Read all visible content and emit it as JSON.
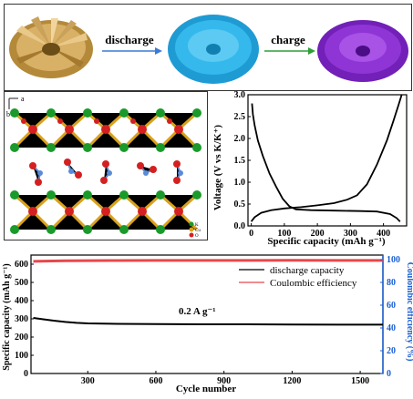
{
  "panel_a": {
    "discharge_label": "discharge",
    "charge_label": "charge",
    "colors": {
      "gold": "#c9a24e",
      "cyan": "#2fb6e6",
      "purple": "#8a2bd4"
    }
  },
  "panel_b": {
    "axis_a": "a",
    "axis_b": "b",
    "legend": [
      "K",
      "Cu",
      "O",
      "C"
    ],
    "colors": {
      "green": "#1a9a2a",
      "red": "#d42020",
      "gold": "#d9a21e",
      "blue": "#5b8bd6"
    }
  },
  "chart_data": [
    {
      "type": "line",
      "xlabel": "Specific capacity (mAh g⁻¹)",
      "ylabel": "Voltage (V vs K/K⁺)",
      "xlim": [
        -10,
        470
      ],
      "ylim": [
        0,
        3.0
      ],
      "x_ticks": [
        0,
        100,
        200,
        300,
        400
      ],
      "y_ticks": [
        0.0,
        0.5,
        1.0,
        1.5,
        2.0,
        2.5,
        3.0
      ],
      "series": [
        {
          "values": [
            [
              2,
              2.8
            ],
            [
              5,
              2.55
            ],
            [
              10,
              2.3
            ],
            [
              20,
              1.95
            ],
            [
              35,
              1.6
            ],
            [
              55,
              1.2
            ],
            [
              75,
              0.9
            ],
            [
              95,
              0.62
            ],
            [
              115,
              0.45
            ],
            [
              135,
              0.38
            ],
            [
              180,
              0.36
            ],
            [
              250,
              0.35
            ],
            [
              330,
              0.34
            ],
            [
              380,
              0.33
            ],
            [
              420,
              0.27
            ],
            [
              440,
              0.18
            ],
            [
              450,
              0.1
            ]
          ]
        },
        {
          "values": [
            [
              0,
              0.1
            ],
            [
              10,
              0.2
            ],
            [
              30,
              0.3
            ],
            [
              60,
              0.36
            ],
            [
              100,
              0.4
            ],
            [
              150,
              0.43
            ],
            [
              200,
              0.47
            ],
            [
              250,
              0.52
            ],
            [
              290,
              0.6
            ],
            [
              320,
              0.7
            ],
            [
              350,
              0.95
            ],
            [
              380,
              1.4
            ],
            [
              410,
              1.95
            ],
            [
              430,
              2.4
            ],
            [
              445,
              2.75
            ],
            [
              455,
              3.0
            ]
          ]
        }
      ]
    },
    {
      "type": "line",
      "xlabel": "Cycle number",
      "ylabel": "Specific capacity (mAh g⁻¹)",
      "y2label": "Coulombic efficiency (%)",
      "xlim": [
        50,
        1600
      ],
      "ylim": [
        0,
        650
      ],
      "y2lim": [
        0,
        104
      ],
      "x_ticks": [
        300,
        600,
        900,
        1200,
        1500
      ],
      "y_ticks": [
        0,
        100,
        200,
        300,
        400,
        500,
        600
      ],
      "y2_ticks": [
        0,
        20,
        40,
        60,
        80,
        100
      ],
      "annotation": "0.2 A g⁻¹",
      "legend": "top-right",
      "series": [
        {
          "name": "discharge capacity",
          "color": "#000000",
          "axis": "left",
          "values": [
            [
              60,
              305
            ],
            [
              100,
              298
            ],
            [
              150,
              290
            ],
            [
              200,
              283
            ],
            [
              250,
              278
            ],
            [
              300,
              275
            ],
            [
              400,
              273
            ],
            [
              600,
              271
            ],
            [
              800,
              270
            ],
            [
              1000,
              270
            ],
            [
              1200,
              269
            ],
            [
              1400,
              268
            ],
            [
              1600,
              268
            ]
          ]
        },
        {
          "name": "Coulombic efficiency",
          "color": "#e8474a",
          "axis": "right",
          "values": [
            [
              60,
              98.5
            ],
            [
              200,
              99.0
            ],
            [
              400,
              99.2
            ],
            [
              600,
              99.3
            ],
            [
              800,
              99.3
            ],
            [
              1000,
              99.3
            ],
            [
              1200,
              99.4
            ],
            [
              1400,
              99.3
            ],
            [
              1600,
              99.3
            ]
          ]
        }
      ]
    }
  ]
}
